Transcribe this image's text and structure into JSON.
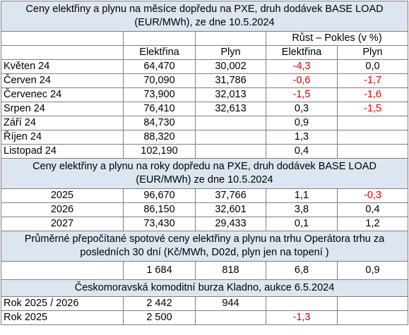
{
  "section1": {
    "title": "Ceny elektřiny a plynu na měsíce dopředu na PXE, druh dodávek BASE LOAD (EUR/MWh), ze dne 10.5.2024",
    "change_header": "Růst – Pokles (v %)",
    "columns": [
      "Elektřina",
      "Plyn",
      "Elektřina",
      "Plyn"
    ],
    "rows": [
      [
        "Květen 24",
        "64,470",
        "30,002",
        "-4,3",
        "0,0"
      ],
      [
        "Červen 24",
        "70,090",
        "31,786",
        "-0,6",
        "-1,7"
      ],
      [
        "Červenec 24",
        "73,900",
        "32,013",
        "-1,5",
        "-1,6"
      ],
      [
        "Srpen 24",
        "76,410",
        "32,613",
        "0,3",
        "-1,5"
      ],
      [
        "Září 24",
        "84,730",
        null,
        "0,9",
        null
      ],
      [
        "Říjen 24",
        "88,320",
        null,
        "1,3",
        null
      ],
      [
        "Listopad 24",
        "102,190",
        null,
        "0,4",
        null
      ]
    ]
  },
  "section2": {
    "title": "Ceny elektřiny a plynu na roky dopředu na PXE, druh dodávek BASE LOAD (EUR/MWh) ze dne 10.5.2024",
    "rows": [
      [
        "2025",
        "96,670",
        "37,766",
        "1,1",
        "-0,3"
      ],
      [
        "2026",
        "86,150",
        "32,601",
        "3,8",
        "0,4"
      ],
      [
        "2027",
        "73,430",
        "29,433",
        "0,1",
        "1,2"
      ]
    ]
  },
  "section3": {
    "title": "Průměrné přepočítané spotové ceny elektřiny a plynu na trhu Operátora trhu za posledních 30 dní (Kč/MWh, D02d, plyn jen na topení )",
    "rows": [
      [
        null,
        "1 684",
        "818",
        "6,8",
        "0,9"
      ]
    ]
  },
  "section4": {
    "title": "Českomoravská komoditní burza Kladno, aukce 6.5.2024",
    "rows": [
      [
        "Rok 2025 / 2026",
        "2 442",
        "944",
        null,
        null
      ],
      [
        "Rok 2025",
        "2 500",
        null,
        "-1,3",
        null
      ]
    ]
  }
}
